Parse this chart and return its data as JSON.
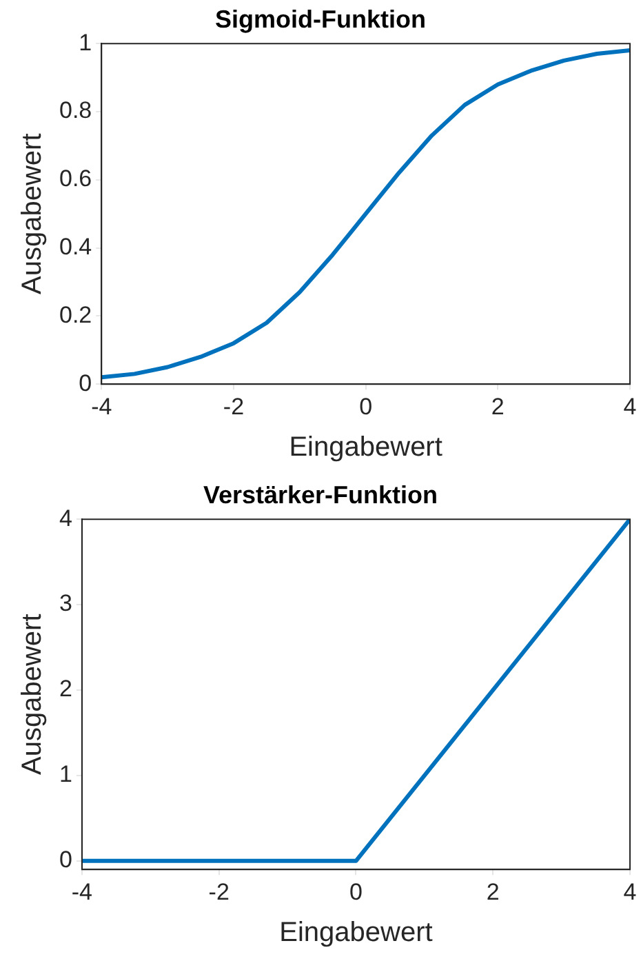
{
  "chart_data": [
    {
      "type": "line",
      "title": "Sigmoid-Funktion",
      "xlabel": "Eingabewert",
      "ylabel": "Ausgabewert",
      "x": [
        -4,
        -3.5,
        -3,
        -2.5,
        -2,
        -1.5,
        -1,
        -0.5,
        0,
        0.5,
        1,
        1.5,
        2,
        2.5,
        3,
        3.5,
        4
      ],
      "series": [
        {
          "color": "#0072bd",
          "values": [
            0.02,
            0.03,
            0.05,
            0.08,
            0.12,
            0.18,
            0.27,
            0.38,
            0.5,
            0.62,
            0.73,
            0.82,
            0.88,
            0.92,
            0.95,
            0.97,
            0.98
          ]
        }
      ],
      "xlim": [
        -4,
        4
      ],
      "xticks": [
        -4,
        -2,
        0,
        2,
        4
      ],
      "ylim": [
        0,
        1
      ],
      "yticks": [
        0,
        0.2,
        0.4,
        0.6,
        0.8,
        1
      ],
      "grid": false,
      "legend": false
    },
    {
      "type": "line",
      "title": "Verstärker-Funktion",
      "xlabel": "Eingabewert",
      "ylabel": "Ausgabewert",
      "x": [
        -4,
        0,
        4
      ],
      "series": [
        {
          "color": "#0072bd",
          "values": [
            0,
            0,
            4
          ]
        }
      ],
      "xlim": [
        -4,
        4
      ],
      "xticks": [
        -4,
        -2,
        0,
        2,
        4
      ],
      "ylim": [
        -0.1,
        4
      ],
      "yticks": [
        0,
        1,
        2,
        3,
        4
      ],
      "grid": false,
      "legend": false
    }
  ]
}
